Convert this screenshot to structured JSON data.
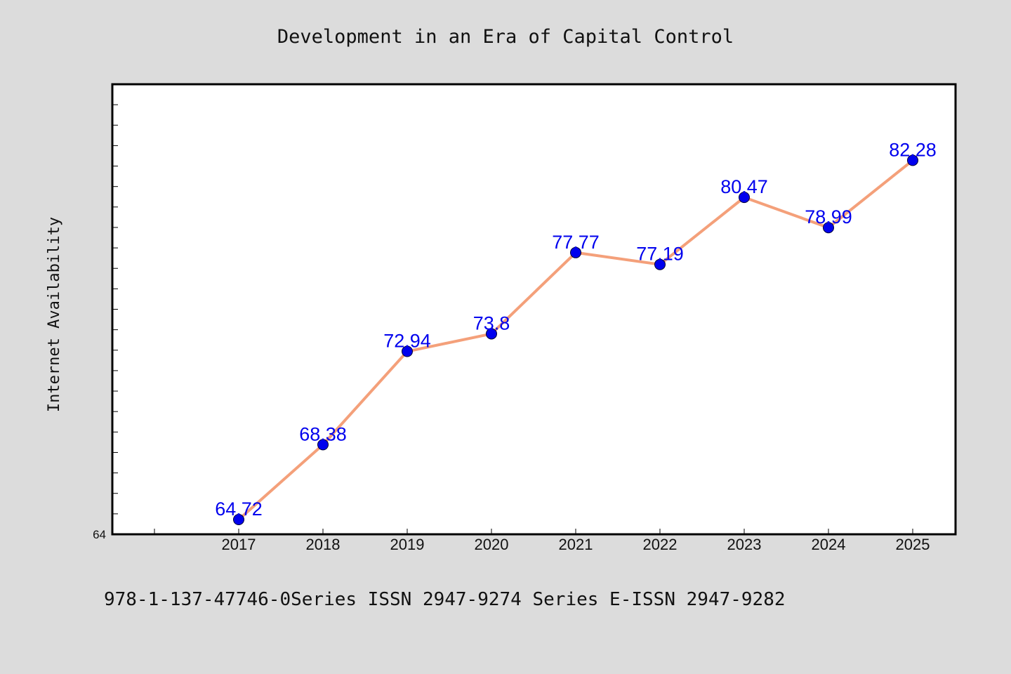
{
  "chart_data": {
    "type": "line",
    "title": "Development in an Era of Capital Control",
    "xlabel": "",
    "ylabel": "Internet Availability",
    "categories": [
      "2017",
      "2018",
      "2019",
      "2020",
      "2021",
      "2022",
      "2023",
      "2024",
      "2025"
    ],
    "series": [
      {
        "values": [
          64.72,
          68.38,
          72.94,
          73.8,
          77.77,
          77.19,
          80.47,
          78.99,
          82.28
        ],
        "data_labels": [
          "64.72",
          "68.38",
          "72.94",
          "73.8",
          "77.77",
          "77.19",
          "80.47",
          "78.99",
          "82.28"
        ]
      }
    ],
    "ylim": [
      64,
      86
    ],
    "y_tick_labels": [
      "64"
    ],
    "grid": false,
    "legend": "none",
    "colors": {
      "line": "#f4a07a",
      "marker": "#0000ee",
      "data_label": "#0000ee",
      "plot_background": "#ffffff",
      "figure_background": "#dcdcdc"
    }
  },
  "footnote": "978-1-137-47746-0Series ISSN 2947-9274 Series E-ISSN 2947-9282"
}
